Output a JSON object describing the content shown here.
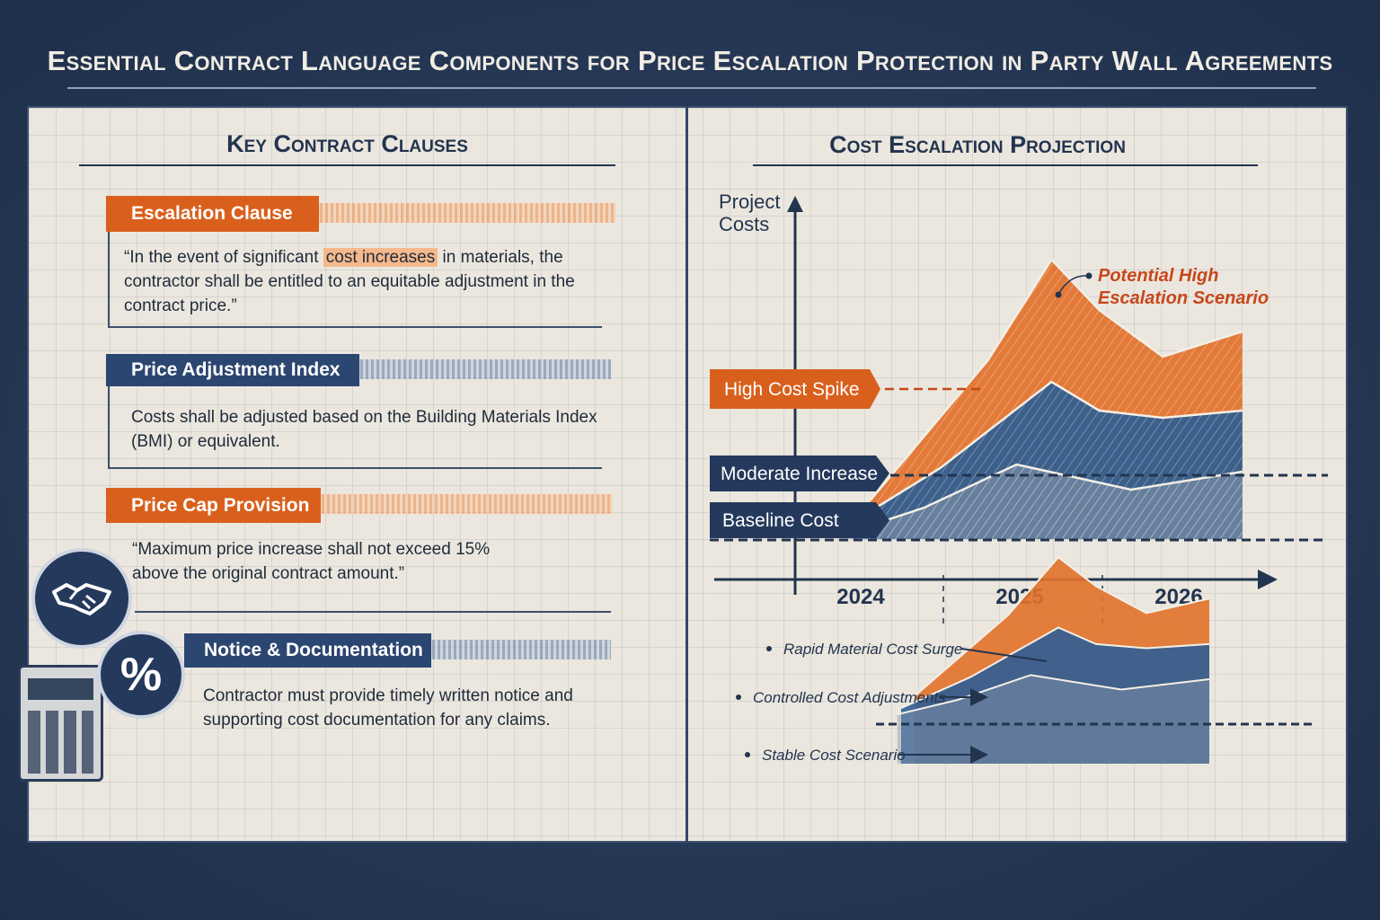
{
  "title": "Essential Contract Language Components for Price Escalation Protection in Party Wall Agreements",
  "left": {
    "heading": "Key Contract Clauses",
    "clauses": [
      {
        "label": "Escalation Clause",
        "color": "orange",
        "text_before": "“In the event of significant ",
        "highlight": "cost increases",
        "text_after": " in materials, the contractor shall be entitled to an equitable adjustment in the contract price.”"
      },
      {
        "label": "Price Adjustment Index",
        "color": "blue",
        "text": "Costs shall be adjusted based on the Building Materials Index (BMI) or equivalent."
      },
      {
        "label": "Price Cap Provision",
        "color": "orange",
        "text": "“Maximum price increase shall not exceed 15% above the original contract amount.”"
      },
      {
        "label": "Notice & Documentation",
        "color": "blue",
        "text": "Contractor must provide timely written notice and supporting cost documentation for any claims."
      }
    ],
    "icons": [
      "handshake-icon",
      "percent-icon",
      "calculator-icon"
    ],
    "percent_glyph": "%"
  },
  "right": {
    "heading": "Cost Escalation Projection"
  },
  "colors": {
    "orange": "#e2712a",
    "blue": "#2f5d93",
    "gray": "#8a99ad",
    "navy": "#23344f",
    "accent_red": "#c8461a"
  },
  "chart_data": [
    {
      "type": "area",
      "ylabel": "Project Costs",
      "xlabel": "",
      "x_ticks": [
        "2024",
        "2025",
        "2026"
      ],
      "grid": true,
      "series": [
        {
          "name": "Potential High Escalation Scenario",
          "color": "#e2712a",
          "points": [
            [
              2024.06,
              22
            ],
            [
              2024.8,
              61
            ],
            [
              2025.2,
              89
            ],
            [
              2025.5,
              75
            ],
            [
              2025.9,
              62
            ],
            [
              2026.4,
              69
            ]
          ]
        },
        {
          "color": "#2f5d93",
          "points": [
            [
              2023.95,
              16
            ],
            [
              2024.5,
              31
            ],
            [
              2025.2,
              55
            ],
            [
              2025.5,
              47
            ],
            [
              2025.9,
              45
            ],
            [
              2026.4,
              47
            ]
          ]
        },
        {
          "color": "#8a99ad",
          "points": [
            [
              2023.92,
              13
            ],
            [
              2024.4,
              20
            ],
            [
              2024.98,
              32
            ],
            [
              2025.7,
              25
            ],
            [
              2026.4,
              30
            ]
          ]
        }
      ],
      "reference_lines": [
        {
          "label": "High Cost Spike",
          "value": 53,
          "color": "#c8461a"
        },
        {
          "label": "Moderate Increase",
          "value": 29,
          "color": "#23344f"
        },
        {
          "label": "Baseline Cost",
          "value": 11,
          "color": "#23344f"
        }
      ]
    },
    {
      "type": "area",
      "annotations": [
        "Rapid Material Cost Surge",
        "Controlled Cost Adjustments",
        "Stable Cost Scenario"
      ]
    }
  ]
}
